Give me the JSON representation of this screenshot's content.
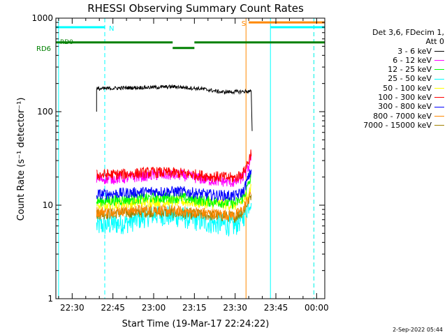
{
  "chart_data": {
    "type": "line",
    "title": "RHESSI Observing Summary Count Rates",
    "xlabel": "Start Time (19-Mar-17 22:24:22)",
    "ylabel": "Count Rate (s⁻¹ detector⁻¹)",
    "xlim": [
      "22:24",
      "00:03"
    ],
    "ylim": [
      1,
      1000
    ],
    "yscale": "log",
    "x_ticks": [
      "22:30",
      "22:45",
      "23:00",
      "23:15",
      "23:30",
      "23:45",
      "00:00"
    ],
    "y_ticks": [
      "1",
      "10",
      "100",
      "1000"
    ],
    "legend": {
      "title_line1": "Det 3,6, FDecim 1,",
      "title_line2": "Att 0",
      "placement": "outside-right"
    },
    "series": [
      {
        "name": "3 - 6 keV",
        "color": "#000000",
        "x": [
          "22:39",
          "22:50",
          "23:00",
          "23:08",
          "23:18",
          "23:25",
          "23:36"
        ],
        "y": [
          175,
          180,
          182,
          185,
          175,
          162,
          165
        ]
      },
      {
        "name": "6 - 12 keV",
        "color": "#ff00ff",
        "x": [
          "22:39",
          "22:50",
          "23:00",
          "23:10",
          "23:20",
          "23:30",
          "23:33",
          "23:35",
          "23:36"
        ],
        "y": [
          19,
          19.5,
          21,
          21,
          18.5,
          17.5,
          20,
          26,
          34
        ]
      },
      {
        "name": "12 - 25 keV",
        "color": "#00ff00",
        "x": [
          "22:39",
          "22:50",
          "23:00",
          "23:10",
          "23:20",
          "23:30",
          "23:33",
          "23:36"
        ],
        "y": [
          11,
          11.5,
          12,
          12,
          11,
          10.5,
          12,
          20
        ]
      },
      {
        "name": "25 - 50 keV",
        "color": "#00ffff",
        "x": [
          "22:39",
          "22:50",
          "23:00",
          "23:10",
          "23:20",
          "23:30",
          "23:33",
          "23:36"
        ],
        "y": [
          6,
          6.5,
          8,
          7.5,
          6.5,
          6,
          7.5,
          12
        ]
      },
      {
        "name": "50 - 100 keV",
        "color": "#ffff00",
        "x": [
          "22:39",
          "22:50",
          "23:00",
          "23:10",
          "23:20",
          "23:30",
          "23:33",
          "23:36"
        ],
        "y": [
          10,
          10.5,
          11,
          11,
          10.5,
          10,
          11,
          16
        ]
      },
      {
        "name": "100 - 300 keV",
        "color": "#ff0000",
        "x": [
          "22:39",
          "22:50",
          "23:00",
          "23:10",
          "23:20",
          "23:30",
          "23:33",
          "23:35",
          "23:36"
        ],
        "y": [
          21,
          21.5,
          22.5,
          22,
          20.5,
          19.5,
          22,
          30,
          38
        ]
      },
      {
        "name": "300 - 800 keV",
        "color": "#0000ff",
        "x": [
          "22:39",
          "22:50",
          "23:00",
          "23:10",
          "23:20",
          "23:30",
          "23:33",
          "23:36"
        ],
        "y": [
          13,
          13.5,
          14,
          14,
          13,
          12.5,
          14,
          24
        ]
      },
      {
        "name": "800 - 7000 keV",
        "color": "#ff8800",
        "x": [
          "22:39",
          "22:50",
          "23:00",
          "23:10",
          "23:20",
          "23:30",
          "23:33",
          "23:36"
        ],
        "y": [
          8.5,
          8.8,
          9,
          8.6,
          8.2,
          7.8,
          9,
          14
        ]
      },
      {
        "name": "7000 - 15000 keV",
        "color": "#a08000",
        "x": [
          "22:39",
          "22:50",
          "23:00",
          "23:10",
          "23:20",
          "23:30",
          "23:33",
          "23:36"
        ],
        "y": [
          8,
          8.3,
          8.5,
          8.2,
          7.8,
          7.5,
          8.5,
          13
        ]
      }
    ],
    "flag_bars": [
      {
        "label": "N",
        "color": "#00ffff",
        "y": 800,
        "segments": [
          [
            "22:24",
            "22:42"
          ],
          [
            "23:43",
            "00:03"
          ]
        ]
      },
      {
        "label": "S",
        "color": "#ff8800",
        "y": 900,
        "segments": [
          [
            "23:35",
            "00:03"
          ]
        ]
      },
      {
        "label": "RD6",
        "color": "#008000",
        "y": 550,
        "segments": [
          [
            "22:24",
            "23:07"
          ],
          [
            "23:15",
            "00:03"
          ]
        ]
      },
      {
        "label": "",
        "color": "#008000",
        "y": 480,
        "segments": [
          [
            "23:07",
            "23:15"
          ]
        ]
      }
    ],
    "vertical_lines": [
      {
        "x": "22:25",
        "color": "#00ffff",
        "style": "solid"
      },
      {
        "x": "22:42",
        "color": "#00ffff",
        "style": "dashed"
      },
      {
        "x": "23:34",
        "color": "#ff8800",
        "style": "solid"
      },
      {
        "x": "23:43",
        "color": "#00ffff",
        "style": "solid"
      },
      {
        "x": "23:59",
        "color": "#ff8800",
        "style": "dashed"
      },
      {
        "x": "23:59",
        "color": "#00ffff",
        "style": "dashed"
      }
    ],
    "flag_text_overlay": "RD0"
  },
  "footer": {
    "date_label": "2-Sep-2022 05:44"
  }
}
